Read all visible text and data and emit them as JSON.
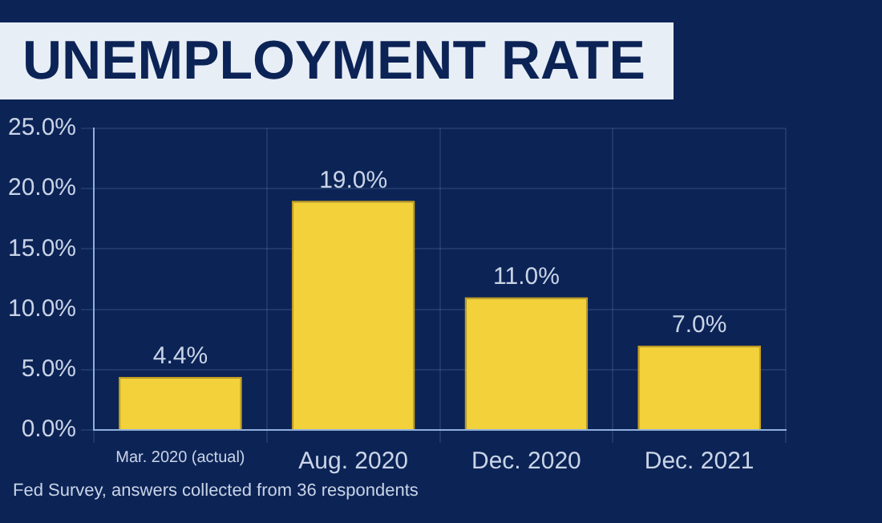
{
  "chart_data": {
    "type": "bar",
    "title": "UNEMPLOYMENT RATE",
    "categories": [
      "Mar. 2020 (actual)",
      "Aug. 2020",
      "Dec. 2020",
      "Dec. 2021"
    ],
    "values": [
      4.4,
      19.0,
      11.0,
      7.0
    ],
    "color": "#f2d13a",
    "value_labels": [
      "4.4%",
      "19.0%",
      "11.0%",
      "7.0%"
    ],
    "ylim": [
      0,
      25
    ],
    "yticks": [
      {
        "value": 0,
        "label": "0.0%"
      },
      {
        "value": 5,
        "label": "5.0%"
      },
      {
        "value": 10,
        "label": "10.0%"
      },
      {
        "value": 15,
        "label": "15.0%"
      },
      {
        "value": 20,
        "label": "20.0%"
      },
      {
        "value": 25,
        "label": "25.0%"
      }
    ],
    "grid": true,
    "annotations": [
      "Fed Survey, answers collected from 36 respondents"
    ]
  }
}
